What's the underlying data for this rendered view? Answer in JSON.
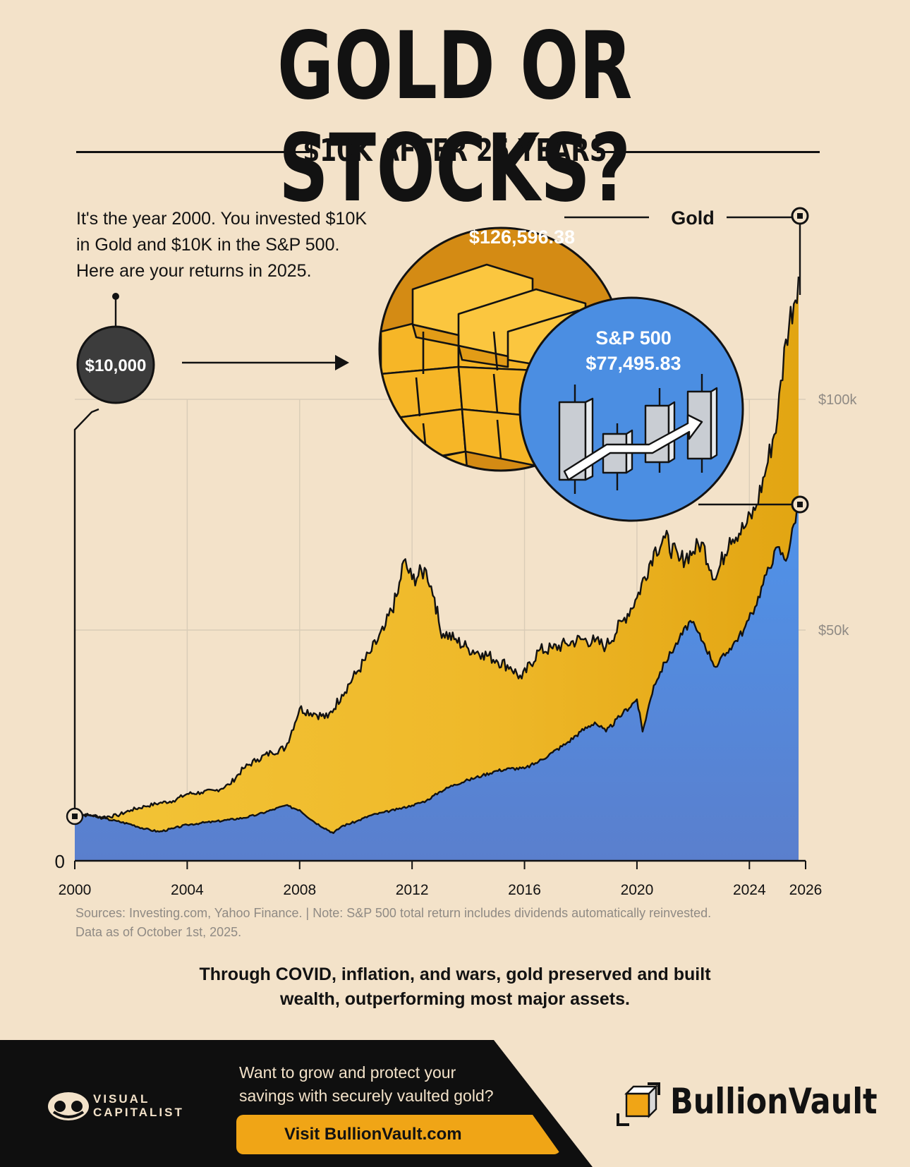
{
  "header": {
    "title": "GOLD OR STOCKS?",
    "subtitle": "$10K AFTER 25 YEARS"
  },
  "intro": {
    "lines": [
      "It's the year 2000. You invested $10K",
      "in Gold and $10K in the S&P 500.",
      "Here are your returns in 2025."
    ]
  },
  "start_badge": "$10,000",
  "gold_callout": {
    "label": "Gold",
    "value": "$126,596.38"
  },
  "sp_callout": {
    "label": "S&P 500",
    "value": "$77,495.83"
  },
  "colors": {
    "background": "#f3e2c9",
    "gold": "#e8ad13",
    "sp500": "#4f8fe0",
    "dark": "#121212"
  },
  "chart_data": {
    "type": "area",
    "x_ticks": [
      "2000",
      "2004",
      "2008",
      "2012",
      "2016",
      "2020",
      "2024",
      "2026"
    ],
    "y_ticks": [
      "0",
      "$50k",
      "$100k"
    ],
    "xlim": [
      2000,
      2026
    ],
    "ylim": [
      0,
      100000
    ],
    "grid": true,
    "series": [
      {
        "name": "Gold",
        "x": [
          2000,
          2000.5,
          2001,
          2001.5,
          2002,
          2002.5,
          2003,
          2003.5,
          2004,
          2004.5,
          2005,
          2005.5,
          2006,
          2006.5,
          2007,
          2007.5,
          2008,
          2008.5,
          2009,
          2009.5,
          2010,
          2010.5,
          2011,
          2011.5,
          2011.7,
          2012,
          2012.5,
          2012.8,
          2013,
          2013.5,
          2014,
          2014.5,
          2015,
          2015.5,
          2015.9,
          2016.5,
          2017,
          2017.5,
          2018,
          2018.5,
          2018.9,
          2019.5,
          2020,
          2020.6,
          2021,
          2021.5,
          2022,
          2022.3,
          2022.8,
          2023.3,
          2023.8,
          2024.2,
          2024.6,
          2025.0,
          2025.3,
          2025.75
        ],
        "values": [
          10000,
          9900,
          9500,
          9800,
          11000,
          11800,
          12500,
          13000,
          14500,
          14800,
          15200,
          16500,
          20000,
          22000,
          23500,
          24500,
          33000,
          32000,
          31000,
          36000,
          40500,
          45000,
          50000,
          58000,
          65000,
          61000,
          63000,
          57000,
          50000,
          48000,
          46000,
          45000,
          43500,
          42000,
          39500,
          45500,
          46000,
          47000,
          48000,
          47500,
          46500,
          52000,
          57000,
          67000,
          70000,
          65000,
          67000,
          69000,
          61000,
          70000,
          72000,
          76000,
          85000,
          96000,
          113000,
          126596.38
        ]
      },
      {
        "name": "S&P 500",
        "x": [
          2000,
          2000.5,
          2001,
          2001.5,
          2002,
          2002.5,
          2003,
          2003.5,
          2004,
          2004.5,
          2005,
          2005.5,
          2006,
          2006.5,
          2007,
          2007.5,
          2008,
          2008.5,
          2009.2,
          2009.5,
          2010,
          2010.5,
          2011,
          2011.5,
          2012,
          2012.5,
          2013,
          2013.5,
          2014,
          2014.5,
          2015,
          2015.5,
          2016,
          2016.5,
          2017,
          2017.5,
          2018,
          2018.5,
          2018.9,
          2019.5,
          2020,
          2020.2,
          2020.6,
          2021,
          2021.5,
          2021.9,
          2022.4,
          2022.8,
          2023.3,
          2023.8,
          2024.2,
          2024.6,
          2025.0,
          2025.3,
          2025.75
        ],
        "values": [
          10000,
          9900,
          9200,
          8600,
          7900,
          6900,
          6300,
          7000,
          7800,
          8200,
          8500,
          8900,
          9300,
          10000,
          11000,
          12000,
          11000,
          8500,
          6000,
          7500,
          8500,
          9800,
          10500,
          11200,
          12000,
          13000,
          15000,
          16500,
          17500,
          18500,
          19500,
          20000,
          20000,
          21500,
          23500,
          25500,
          28000,
          30000,
          28000,
          32000,
          35000,
          28000,
          38000,
          43000,
          48000,
          52000,
          47000,
          42000,
          46000,
          50000,
          55000,
          62000,
          68000,
          65000,
          77495.83
        ]
      }
    ]
  },
  "notes": {
    "sources": "Sources: Investing.com, Yahoo Finance. | Note: S&P 500 total return includes dividends automatically reinvested.",
    "data_date": "Data as of October 1st, 2025."
  },
  "takeaway": {
    "line1": "Through COVID, inflation, and wars, gold preserved and built",
    "line2": "wealth, outperforming most major assets."
  },
  "footer": {
    "brand_line1": "VISUAL",
    "brand_line2": "CAPITALIST",
    "cta_line1": "Want to grow and protect your",
    "cta_line2": "savings with securely vaulted gold?",
    "cta_button": "Visit BullionVault.com",
    "sponsor": "BullionVault"
  }
}
